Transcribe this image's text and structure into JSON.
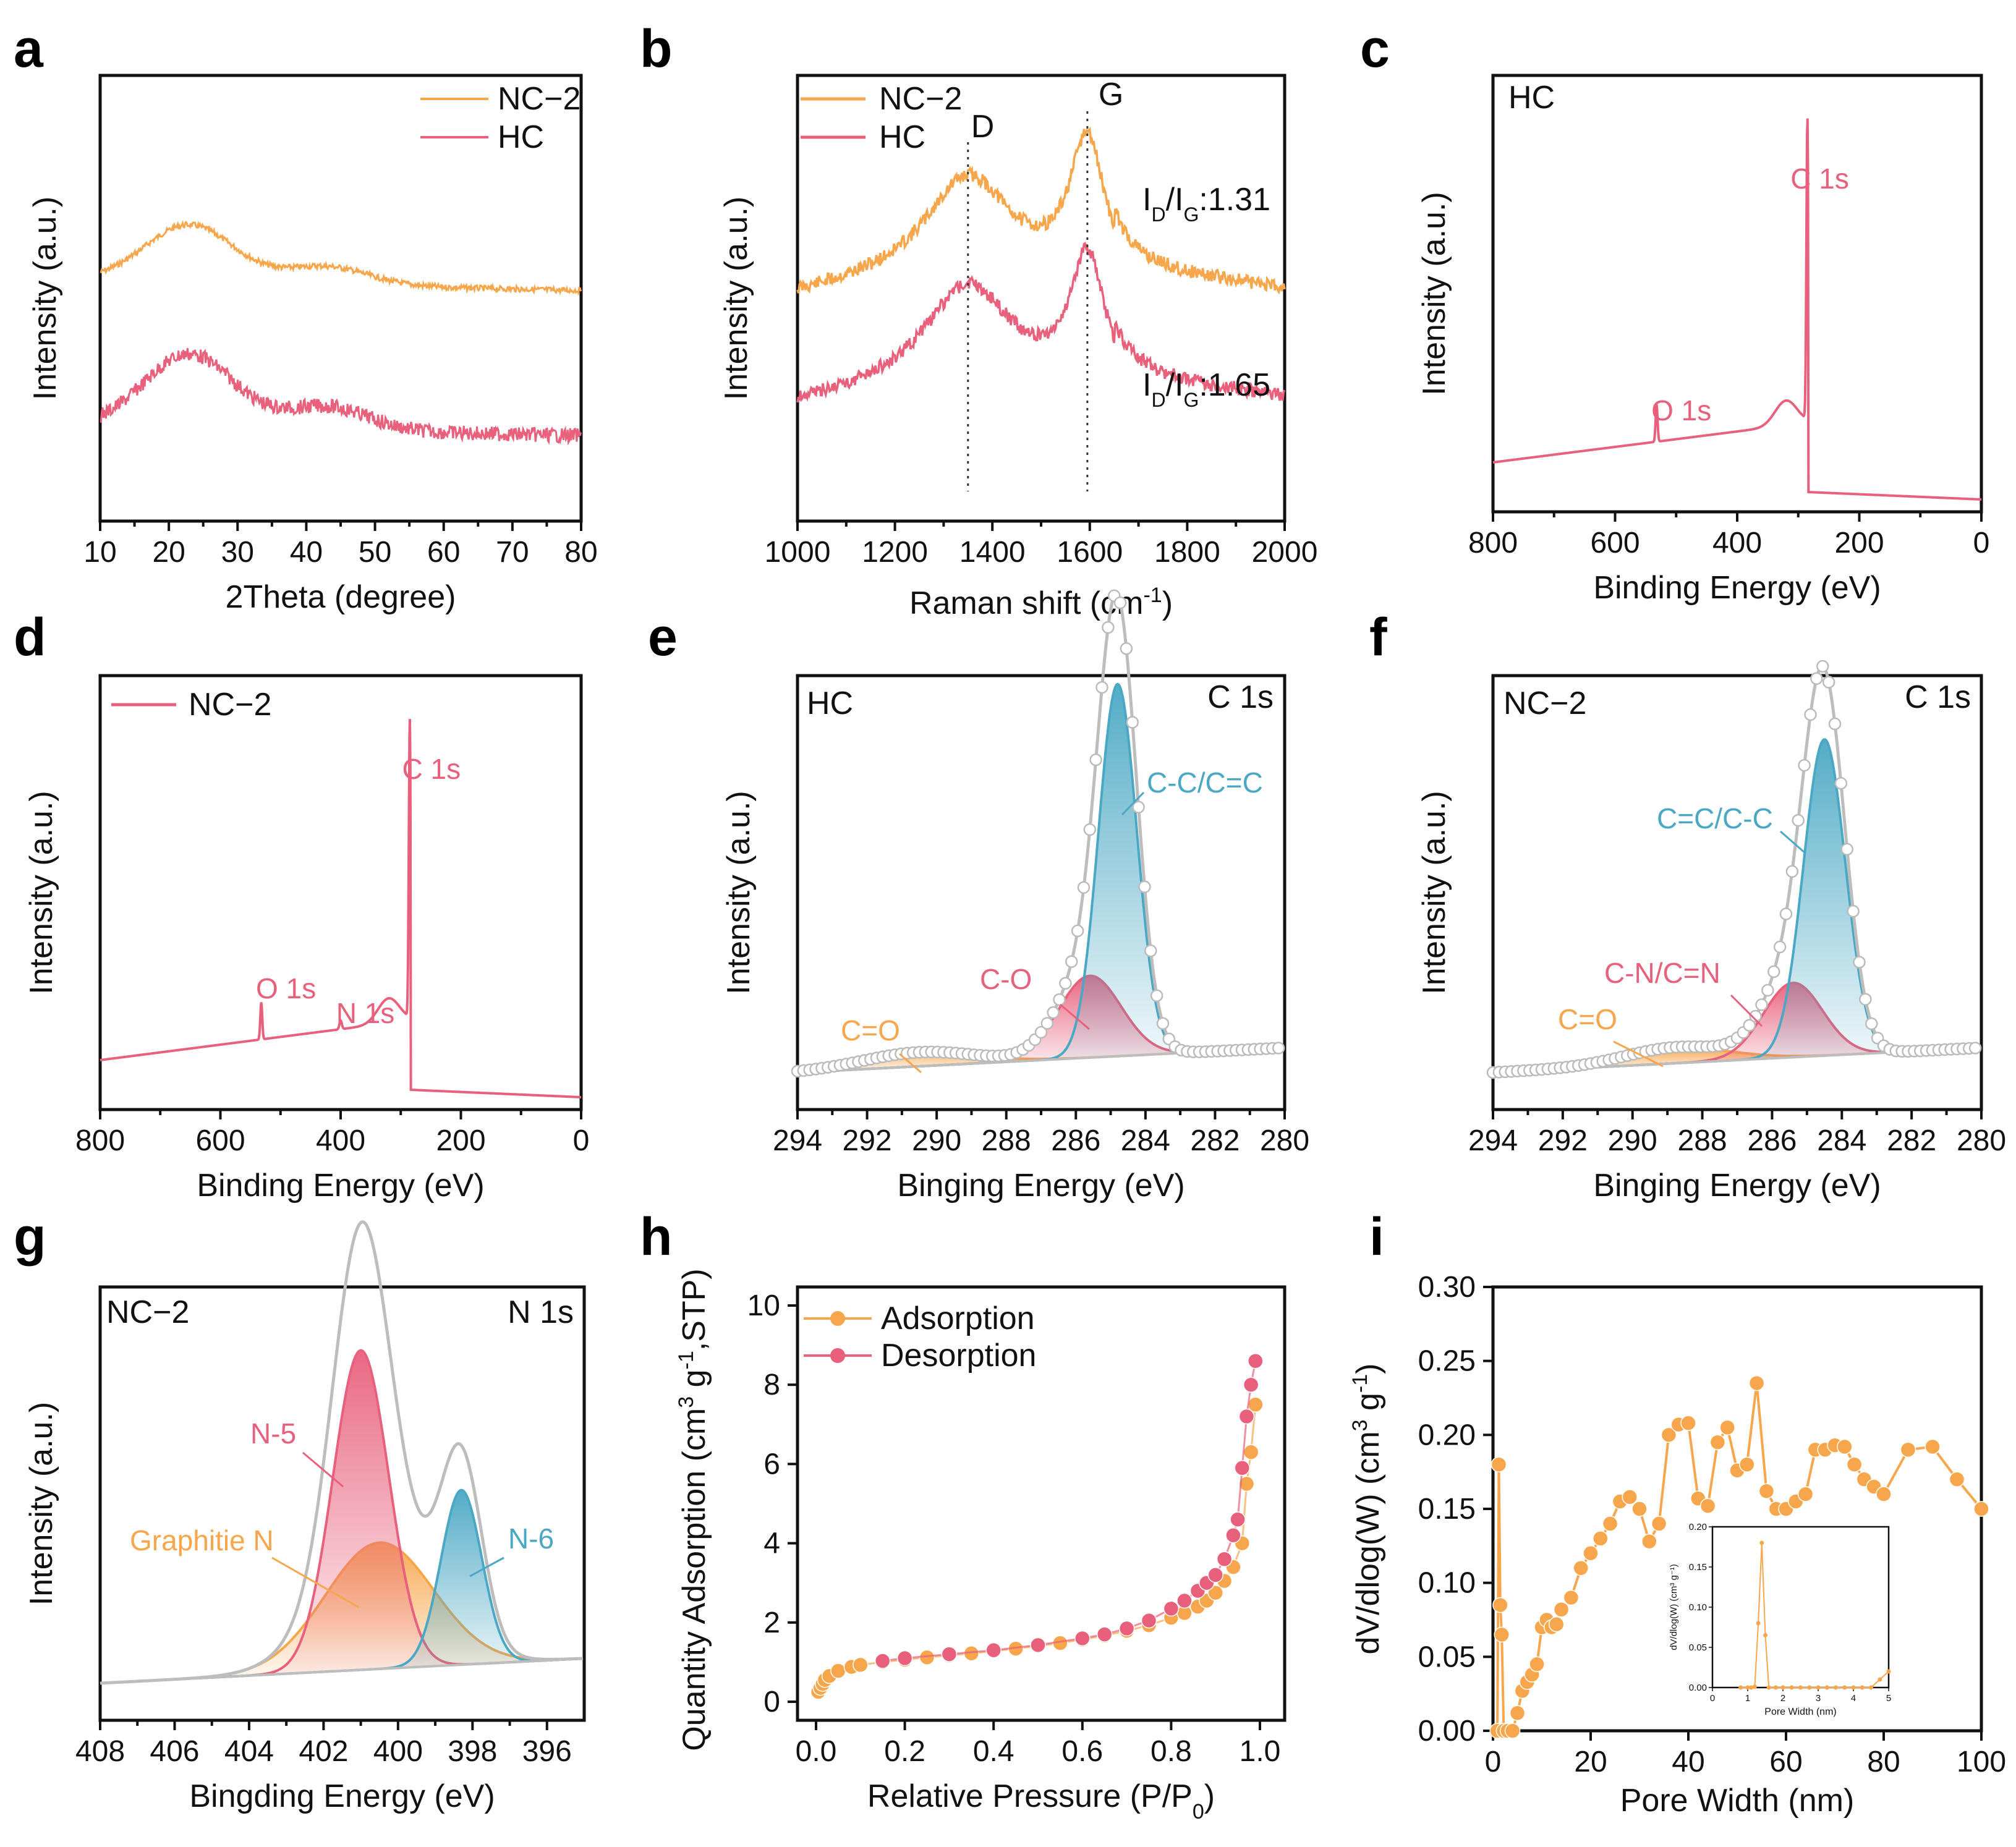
{
  "colors": {
    "orange": "#f7a64c",
    "pink": "#e8607c",
    "blue": "#4aa8c4",
    "gray": "#bdbdbd",
    "text": "#111111"
  },
  "chart_data": [
    {
      "panel": "a",
      "type": "line",
      "xlabel": "2Theta (degree)",
      "ylabel": "Intensity (a.u.)",
      "xlim": [
        10,
        80
      ],
      "xticks": [
        "10",
        "20",
        "30",
        "40",
        "50",
        "60",
        "70",
        "80"
      ],
      "series": [
        {
          "name": "NC−2",
          "color": "orange"
        },
        {
          "name": "HC",
          "color": "pink"
        }
      ],
      "peaks_deg": [
        23,
        43
      ]
    },
    {
      "panel": "b",
      "type": "line",
      "xlabel": "Raman shift (cm",
      "xlabel_sup": "-1",
      "xlabel_end": ")",
      "ylabel": "Intensity (a.u.)",
      "xlim": [
        1000,
        2000
      ],
      "xticks": [
        "1000",
        "1200",
        "1400",
        "1600",
        "1800",
        "2000"
      ],
      "series": [
        {
          "name": "NC−2",
          "color": "orange",
          "ratio_text": "I",
          "ratio_sub1": "D",
          "ratio_mid": "/I",
          "ratio_sub2": "G",
          "ratio_val": ":1.31"
        },
        {
          "name": "HC",
          "color": "pink",
          "ratio_text": "I",
          "ratio_sub1": "D",
          "ratio_mid": "/I",
          "ratio_sub2": "G",
          "ratio_val": ":1.65"
        }
      ],
      "band_labels": [
        {
          "text": "D",
          "x": 1350
        },
        {
          "text": "G",
          "x": 1595
        }
      ]
    },
    {
      "panel": "c",
      "type": "line",
      "sample": "HC",
      "xlabel": "Binding Energy (eV)",
      "ylabel": "Intensity (a.u.)",
      "xlim": [
        800,
        0
      ],
      "xticks": [
        "800",
        "600",
        "400",
        "200",
        "0"
      ],
      "peak_labels": [
        {
          "text": "C 1s",
          "x": 285
        },
        {
          "text": "O 1s",
          "x": 532
        }
      ]
    },
    {
      "panel": "d",
      "type": "line",
      "xlabel": "Binding Energy (eV)",
      "ylabel": "Intensity (a.u.)",
      "xlim": [
        800,
        0
      ],
      "xticks": [
        "800",
        "600",
        "400",
        "200",
        "0"
      ],
      "legend": "NC−2",
      "peak_labels": [
        {
          "text": "C 1s",
          "x": 285
        },
        {
          "text": "O 1s",
          "x": 532
        },
        {
          "text": "N 1s",
          "x": 400
        }
      ]
    },
    {
      "panel": "e",
      "type": "area",
      "sample": "HC",
      "region": "C 1s",
      "xlabel": "Binging Energy (eV)",
      "ylabel": "Intensity (a.u.)",
      "xlim": [
        294,
        280
      ],
      "xticks": [
        "294",
        "292",
        "290",
        "288",
        "286",
        "284",
        "282",
        "280"
      ],
      "components": [
        {
          "label": "C-C/C=C",
          "center": 284.8,
          "color": "blue"
        },
        {
          "label": "C-O",
          "center": 285.6,
          "color": "pink"
        },
        {
          "label": "C=O",
          "center": 290.5,
          "color": "orange"
        }
      ]
    },
    {
      "panel": "f",
      "type": "area",
      "sample": "NC−2",
      "region": "C 1s",
      "xlabel": "Binging Energy (eV)",
      "ylabel": "Intensity (a.u.)",
      "xlim": [
        294,
        280
      ],
      "xticks": [
        "294",
        "292",
        "290",
        "288",
        "286",
        "284",
        "282",
        "280"
      ],
      "components": [
        {
          "label": "C=C/C-C",
          "center": 284.5,
          "color": "blue"
        },
        {
          "label": "C-N/C=N",
          "center": 285.4,
          "color": "pink"
        },
        {
          "label": "C=O",
          "center": 288.7,
          "color": "orange"
        }
      ]
    },
    {
      "panel": "g",
      "type": "area",
      "sample": "NC−2",
      "region": "N 1s",
      "xlabel": "Bingding Energy (eV)",
      "ylabel": "Intensity (a.u.)",
      "xlim": [
        408,
        395
      ],
      "xticks": [
        "408",
        "406",
        "404",
        "402",
        "400",
        "398",
        "396"
      ],
      "components": [
        {
          "label": "N-5",
          "center": 401.0,
          "color": "pink"
        },
        {
          "label": "Graphitie N",
          "center": 400.5,
          "color": "orange"
        },
        {
          "label": "N-6",
          "center": 398.3,
          "color": "blue"
        }
      ]
    },
    {
      "panel": "h",
      "type": "scatter",
      "xlabel": "Relative Pressure (P/P",
      "xlabel_sub": "0",
      "xlabel_end": ")",
      "ylabel": "Quantity Adsorption (cm",
      "xlim": [
        0,
        1
      ],
      "ylim": [
        0,
        10
      ],
      "xticks": [
        "0.0",
        "0.2",
        "0.4",
        "0.6",
        "0.8",
        "1.0"
      ],
      "yticks": [
        "0",
        "2",
        "4",
        "6",
        "8",
        "10"
      ],
      "series": [
        {
          "name": "Adsorption",
          "color": "orange",
          "x": [
            0.005,
            0.01,
            0.015,
            0.02,
            0.03,
            0.05,
            0.08,
            0.1,
            0.15,
            0.2,
            0.25,
            0.3,
            0.35,
            0.4,
            0.45,
            0.5,
            0.55,
            0.6,
            0.65,
            0.7,
            0.75,
            0.8,
            0.83,
            0.86,
            0.88,
            0.9,
            0.92,
            0.94,
            0.96,
            0.97,
            0.98,
            0.99
          ],
          "y": [
            0.25,
            0.35,
            0.45,
            0.55,
            0.65,
            0.78,
            0.88,
            0.93,
            1.0,
            1.06,
            1.12,
            1.17,
            1.22,
            1.28,
            1.34,
            1.41,
            1.48,
            1.57,
            1.67,
            1.79,
            1.93,
            2.12,
            2.24,
            2.4,
            2.55,
            2.75,
            3.05,
            3.4,
            4.0,
            5.5,
            6.3,
            7.5
          ]
        },
        {
          "name": "Desorption",
          "color": "pink",
          "x": [
            0.15,
            0.2,
            0.3,
            0.4,
            0.5,
            0.6,
            0.65,
            0.7,
            0.75,
            0.8,
            0.83,
            0.86,
            0.88,
            0.9,
            0.92,
            0.94,
            0.95,
            0.96,
            0.97,
            0.98,
            0.99
          ],
          "y": [
            1.03,
            1.1,
            1.2,
            1.3,
            1.43,
            1.6,
            1.7,
            1.85,
            2.05,
            2.35,
            2.55,
            2.8,
            3.0,
            3.2,
            3.6,
            4.2,
            4.6,
            5.9,
            7.2,
            8.0,
            8.6
          ]
        }
      ]
    },
    {
      "panel": "i",
      "type": "line",
      "xlabel": "Pore Width (nm)",
      "ylabel": "dV/dlog(W) (cm",
      "xlim": [
        0,
        100
      ],
      "ylim": [
        0,
        0.3
      ],
      "xticks": [
        "0",
        "20",
        "40",
        "60",
        "80",
        "100"
      ],
      "yticks": [
        "0.00",
        "0.05",
        "0.10",
        "0.15",
        "0.20",
        "0.25",
        "0.30"
      ],
      "x": [
        0.9,
        1.2,
        1.5,
        1.8,
        2.2,
        3,
        4,
        5,
        6,
        7,
        8,
        9,
        10,
        11,
        12,
        13,
        14,
        16,
        18,
        20,
        22,
        24,
        26,
        28,
        30,
        32,
        34,
        36,
        38,
        40,
        42,
        44,
        46,
        48,
        50,
        52,
        54,
        56,
        58,
        60,
        62,
        64,
        66,
        68,
        70,
        72,
        74,
        76,
        78,
        80,
        85,
        90,
        95,
        100
      ],
      "y": [
        0.0,
        0.18,
        0.085,
        0.065,
        0.0,
        0.0,
        0.0,
        0.012,
        0.027,
        0.033,
        0.038,
        0.045,
        0.07,
        0.075,
        0.07,
        0.072,
        0.082,
        0.09,
        0.11,
        0.12,
        0.13,
        0.14,
        0.155,
        0.158,
        0.15,
        0.128,
        0.14,
        0.2,
        0.207,
        0.208,
        0.157,
        0.152,
        0.195,
        0.205,
        0.176,
        0.18,
        0.235,
        0.162,
        0.15,
        0.15,
        0.155,
        0.16,
        0.19,
        0.19,
        0.193,
        0.192,
        0.18,
        0.17,
        0.165,
        0.16,
        0.19,
        0.192,
        0.17,
        0.15
      ],
      "inset": {
        "xlabel": "Pore Width (nm)",
        "ylabel": "dV/dlog(W) (cm³ g⁻¹)",
        "xlim": [
          0,
          5
        ],
        "ylim": [
          0,
          0.2
        ],
        "xticks": [
          "0",
          "1",
          "2",
          "3",
          "4",
          "5"
        ],
        "yticks": [
          "0.00",
          "0.05",
          "0.10",
          "0.15",
          "0.20"
        ],
        "x": [
          0.8,
          1.0,
          1.1,
          1.2,
          1.3,
          1.4,
          1.5,
          1.6,
          1.8,
          2.0,
          2.25,
          2.5,
          2.75,
          3.0,
          3.25,
          3.5,
          3.75,
          4.0,
          4.25,
          4.5,
          4.75,
          5.0
        ],
        "y": [
          0,
          0,
          0,
          0.001,
          0.08,
          0.18,
          0.065,
          0,
          0,
          0,
          0,
          0,
          0,
          0,
          0,
          0,
          0,
          0,
          0,
          0,
          0.01,
          0.02
        ]
      }
    }
  ],
  "sup_labels": {
    "cm3": "3",
    "g": " g",
    "gm1": "-1",
    "stp": ",STP)",
    "close": ")"
  }
}
